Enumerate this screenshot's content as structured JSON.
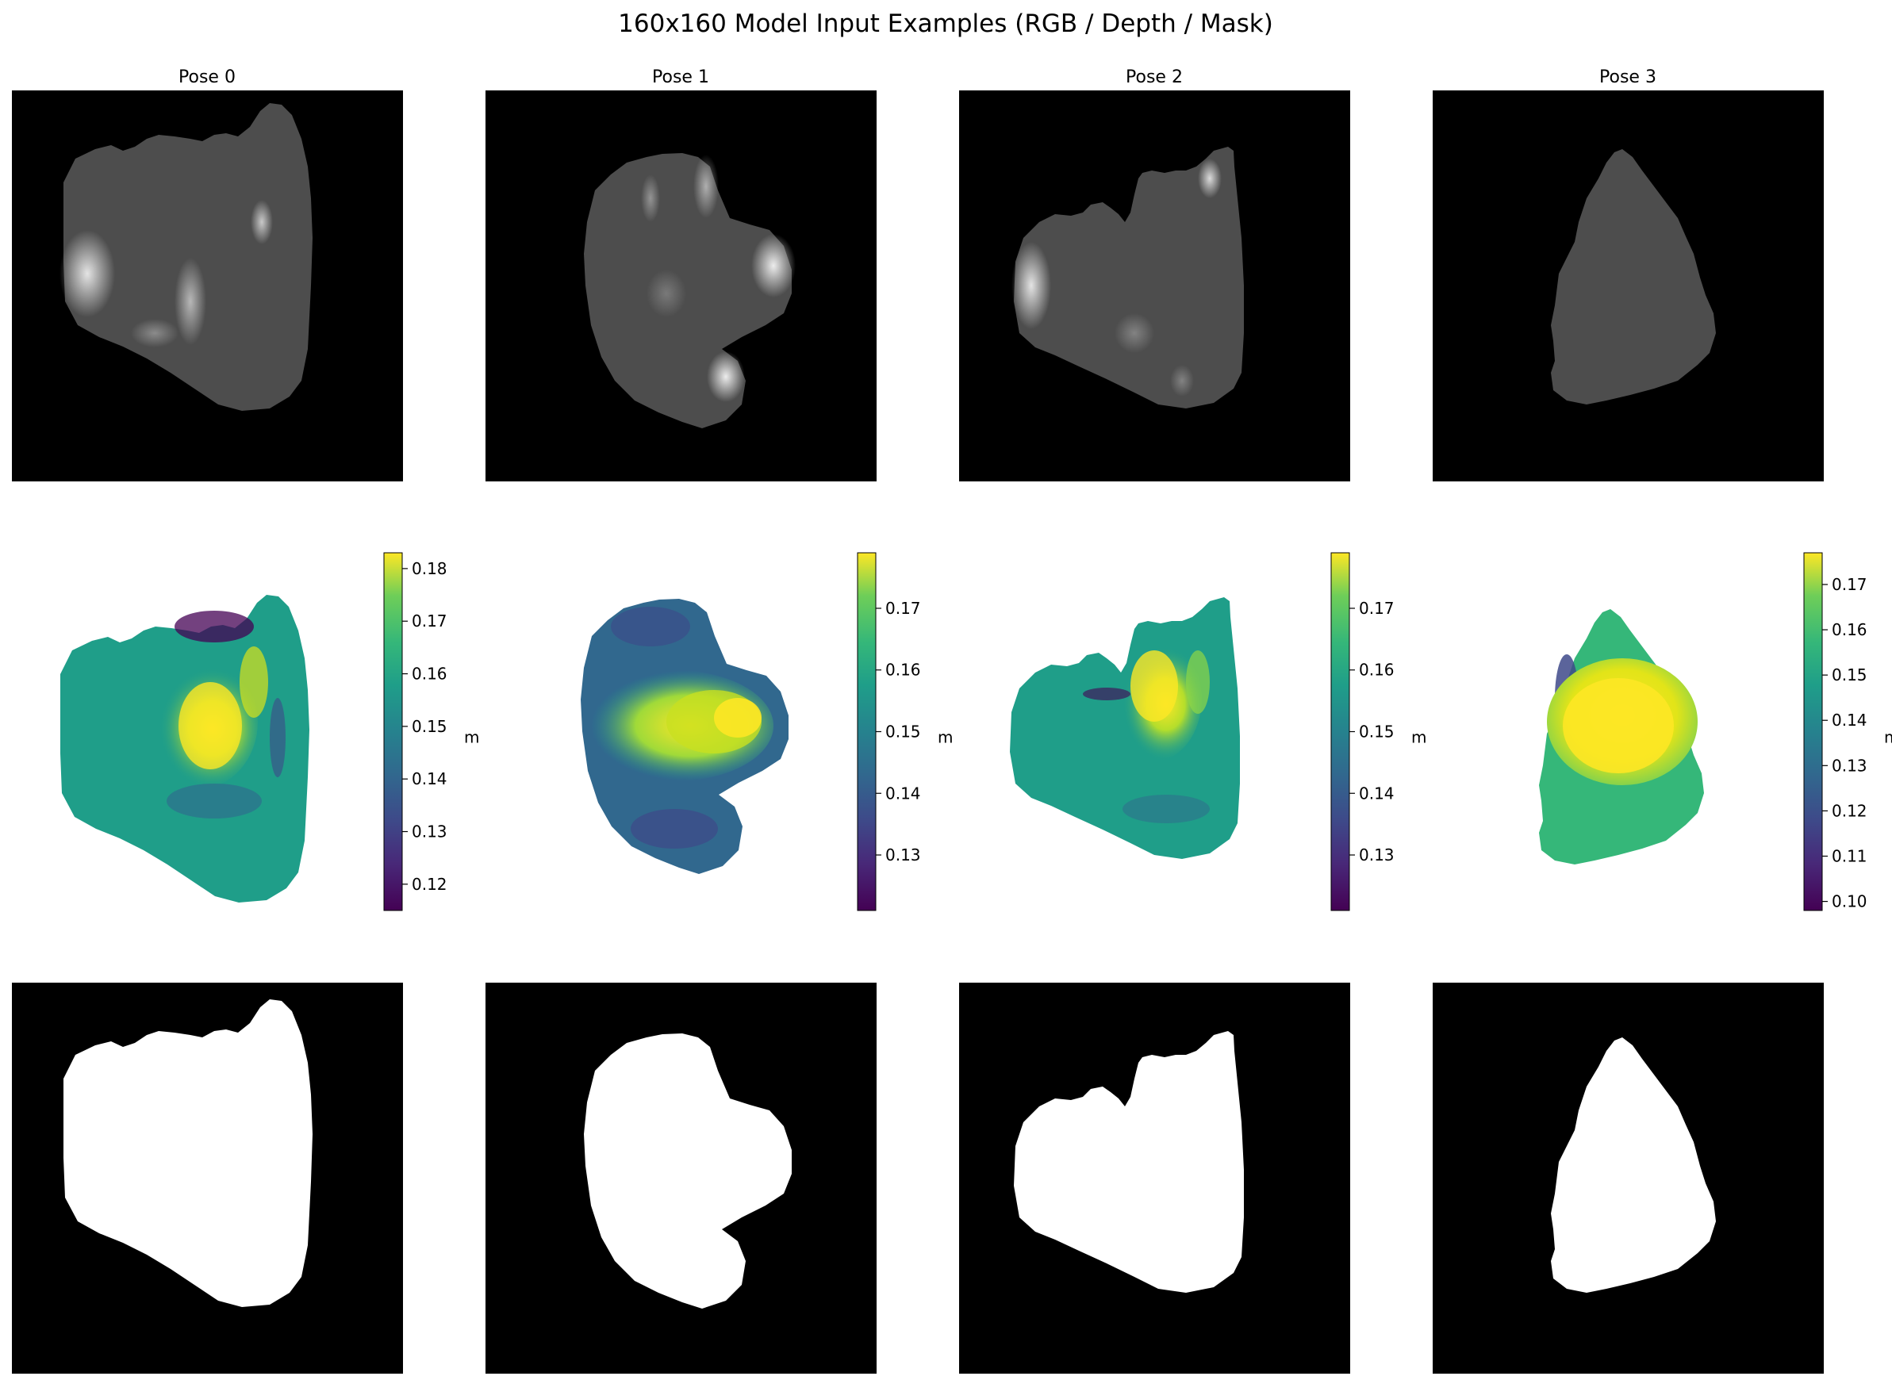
{
  "figure": {
    "title": "160x160 Model Input Examples (RGB / Depth / Mask)"
  },
  "poses": [
    {
      "title": "Pose 0",
      "depth_colorbar": {
        "ticks": [
          "0.12",
          "0.13",
          "0.14",
          "0.15",
          "0.16",
          "0.17",
          "0.18"
        ],
        "range": [
          0.115,
          0.183
        ],
        "label": "m"
      }
    },
    {
      "title": "Pose 1",
      "depth_colorbar": {
        "ticks": [
          "0.13",
          "0.14",
          "0.15",
          "0.16",
          "0.17"
        ],
        "range": [
          0.121,
          0.179
        ],
        "label": "m"
      }
    },
    {
      "title": "Pose 2",
      "depth_colorbar": {
        "ticks": [
          "0.13",
          "0.14",
          "0.15",
          "0.16",
          "0.17"
        ],
        "range": [
          0.121,
          0.179
        ],
        "label": "m"
      }
    },
    {
      "title": "Pose 3",
      "depth_colorbar": {
        "ticks": [
          "0.10",
          "0.11",
          "0.12",
          "0.13",
          "0.14",
          "0.15",
          "0.16",
          "0.17"
        ],
        "range": [
          0.098,
          0.177
        ],
        "label": "m"
      }
    }
  ],
  "colormap": "viridis",
  "colors": {
    "background": "#000000",
    "rgb_fill": "#4d4d4d",
    "mask_fill": "#ffffff"
  }
}
